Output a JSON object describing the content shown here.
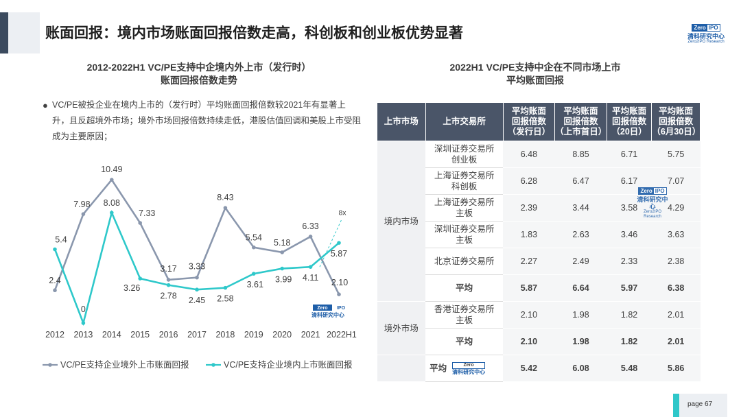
{
  "header": {
    "title": "账面回报：境内市场账面回报倍数走高，科创板和创业板优势显著"
  },
  "logo": {
    "badge_left": "Zero",
    "badge_right": "IPO",
    "name_cn": "清科研究中心",
    "name_en": "Zero2IPO Research"
  },
  "left_chart": {
    "title_line1": "2012-2022H1 VC/PE支持中企境内外上市（发行时）",
    "title_line2": "账面回报倍数走势",
    "description": "VC/PE被投企业在境内上市的（发行时）平均账面回报倍数较2021年有显著上升，且反超境外市场；境外市场回报倍数持续走低，港股估值回调和美股上市受阻成为主要原因；",
    "annotation_8x": "8x"
  },
  "chart_data": {
    "type": "line",
    "categories": [
      "2012",
      "2013",
      "2014",
      "2015",
      "2016",
      "2017",
      "2018",
      "2019",
      "2020",
      "2021",
      "2022H1"
    ],
    "series": [
      {
        "name": "VC/PE支持企业境外上市账面回报",
        "values": [
          2.4,
          7.98,
          10.49,
          7.33,
          3.17,
          3.33,
          8.43,
          5.54,
          5.18,
          6.33,
          2.1
        ],
        "labels": [
          "2.4",
          "7.98",
          "10.49",
          "7.33",
          "3.17",
          "3.33",
          "8.43",
          "5.54",
          "5.18",
          "6.33",
          "2.10"
        ],
        "color": "#8a97ad"
      },
      {
        "name": "VC/PE支持企业境内上市账面回报",
        "values": [
          5.4,
          0,
          8.08,
          3.26,
          2.78,
          2.45,
          2.58,
          3.61,
          3.99,
          4.11,
          5.87
        ],
        "labels": [
          "5.4",
          "0",
          "8.08",
          "3.26",
          "2.78",
          "2.45",
          "2.58",
          "3.61",
          "3.99",
          "4.11",
          "5.87"
        ],
        "color": "#2ec8ca"
      }
    ],
    "ylim": [
      0,
      11
    ],
    "grid": false,
    "legend": "bottom"
  },
  "right_table": {
    "title_line1": "2022H1 VC/PE支持中企在不同市场上市",
    "title_line2": "平均账面回报",
    "headers": [
      "上市市场",
      "上市交易所",
      "平均账面回报倍数（发行日）",
      "平均账面回报倍数（上市首日）",
      "平均账面回报倍数（20日）",
      "平均账面回报倍数（6月30日）"
    ],
    "header_lines": [
      [
        "上市市场"
      ],
      [
        "上市交易所"
      ],
      [
        "平均账面",
        "回报倍数",
        "（发行日）"
      ],
      [
        "平均账面",
        "回报倍数",
        "（上市首日）"
      ],
      [
        "平均账面",
        "回报倍数",
        "（20日）"
      ],
      [
        "平均账面",
        "回报倍数",
        "（6月30日）"
      ]
    ],
    "groups": [
      {
        "market": "境内市场",
        "rows": [
          {
            "exchange": "深圳证券交易所创业板",
            "ex_l1": "深圳证券交易所",
            "ex_l2": "创业板",
            "values": [
              "6.48",
              "8.85",
              "6.71",
              "5.75"
            ]
          },
          {
            "exchange": "上海证券交易所科创板",
            "ex_l1": "上海证券交易所",
            "ex_l2": "科创板",
            "values": [
              "6.28",
              "6.47",
              "6.17",
              "7.07"
            ]
          },
          {
            "exchange": "上海证券交易所主板",
            "ex_l1": "上海证券交易所",
            "ex_l2": "主板",
            "values": [
              "2.39",
              "3.44",
              "3.58",
              "4.29"
            ]
          },
          {
            "exchange": "深圳证券交易所主板",
            "ex_l1": "深圳证券交易所",
            "ex_l2": "主板",
            "values": [
              "1.83",
              "2.63",
              "3.46",
              "3.63"
            ]
          },
          {
            "exchange": "北京证券交易所",
            "ex_l1": "北京证券交易所",
            "ex_l2": "",
            "values": [
              "2.27",
              "2.49",
              "2.33",
              "2.38"
            ]
          },
          {
            "exchange": "平均",
            "ex_l1": "平均",
            "ex_l2": "",
            "values": [
              "5.87",
              "6.64",
              "5.97",
              "6.38"
            ],
            "avg": true
          }
        ]
      },
      {
        "market": "境外市场",
        "rows": [
          {
            "exchange": "香港证券交易所主板",
            "ex_l1": "香港证券交易所",
            "ex_l2": "主板",
            "values": [
              "2.10",
              "1.98",
              "1.82",
              "2.01"
            ]
          },
          {
            "exchange": "平均",
            "ex_l1": "平均",
            "ex_l2": "",
            "values": [
              "2.10",
              "1.98",
              "1.82",
              "2.01"
            ],
            "avg": true
          }
        ]
      }
    ],
    "total": {
      "label": "平均",
      "values": [
        "5.42",
        "6.08",
        "5.48",
        "5.86"
      ]
    }
  },
  "footer": {
    "page_label": "page  67"
  }
}
